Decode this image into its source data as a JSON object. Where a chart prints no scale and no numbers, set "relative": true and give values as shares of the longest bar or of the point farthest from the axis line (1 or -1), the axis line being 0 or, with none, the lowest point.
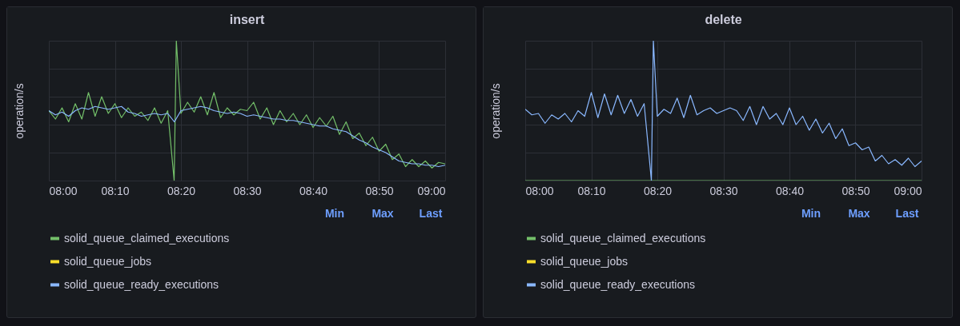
{
  "chart_data": [
    {
      "type": "line",
      "title": "insert",
      "ylabel": "operation/s",
      "relative": true,
      "grid": true,
      "legend": "bottom",
      "x": [
        8,
        8.0167,
        8.0333,
        8.05,
        8.0667,
        8.0833,
        8.1,
        8.1167,
        8.1333,
        8.15,
        8.1667,
        8.1833,
        8.2,
        8.2167,
        8.2333,
        8.25,
        8.2667,
        8.2833,
        8.3,
        8.3167,
        8.3333,
        8.35,
        8.3667,
        8.3833,
        8.4,
        8.4167,
        8.4333,
        8.45,
        8.4667,
        8.4833,
        8.5,
        8.5167,
        8.5333,
        8.55,
        8.5667,
        8.5833,
        8.6,
        8.6167,
        8.6333,
        8.65,
        8.6667,
        8.6833,
        8.7,
        8.7167,
        8.7333,
        8.75,
        8.7667,
        8.7833,
        8.8,
        8.8167,
        8.8333,
        8.85,
        8.8667,
        8.8833,
        8.9,
        8.9167,
        8.9333,
        8.95,
        8.9667,
        8.9833,
        9
      ],
      "xlim": [
        8,
        9
      ],
      "xticks": [
        {
          "value": 8,
          "label": "08:00"
        },
        {
          "value": 8.1667,
          "label": "08:10"
        },
        {
          "value": 8.3333,
          "label": "08:20"
        },
        {
          "value": 8.5,
          "label": "08:30"
        },
        {
          "value": 8.6667,
          "label": "08:40"
        },
        {
          "value": 8.8333,
          "label": "08:50"
        },
        {
          "value": 9,
          "label": "09:00"
        }
      ],
      "annotations": [
        "Min",
        "Max",
        "Last"
      ],
      "series": [
        {
          "name": "solid_queue_claimed_executions",
          "color": "#73bf69",
          "x": [
            8,
            8.0167,
            8.0333,
            8.05,
            8.0667,
            8.0833,
            8.1,
            8.1167,
            8.1333,
            8.15,
            8.1667,
            8.1833,
            8.2,
            8.2167,
            8.2333,
            8.25,
            8.2667,
            8.2833,
            8.3,
            8.3162,
            8.3217,
            8.3333,
            8.35,
            8.3667,
            8.3833,
            8.4,
            8.4167,
            8.4333,
            8.45,
            8.4667,
            8.4833,
            8.5,
            8.5167,
            8.5333,
            8.55,
            8.5667,
            8.5833,
            8.6,
            8.6167,
            8.6333,
            8.65,
            8.6667,
            8.6833,
            8.7,
            8.7167,
            8.7333,
            8.75,
            8.7667,
            8.7833,
            8.8,
            8.8167,
            8.8333,
            8.85,
            8.8667,
            8.8833,
            8.9,
            8.9167,
            8.9333,
            8.95,
            8.9667,
            8.9833,
            9
          ],
          "values": [
            0.5,
            0.44,
            0.52,
            0.42,
            0.55,
            0.44,
            0.63,
            0.46,
            0.6,
            0.48,
            0.55,
            0.45,
            0.52,
            0.46,
            0.49,
            0.43,
            0.52,
            0.41,
            0.5,
            0,
            1,
            0.48,
            0.56,
            0.49,
            0.6,
            0.47,
            0.63,
            0.45,
            0.52,
            0.47,
            0.51,
            0.5,
            0.56,
            0.44,
            0.52,
            0.4,
            0.5,
            0.42,
            0.48,
            0.4,
            0.47,
            0.38,
            0.45,
            0.39,
            0.46,
            0.33,
            0.42,
            0.3,
            0.34,
            0.25,
            0.31,
            0.21,
            0.26,
            0.15,
            0.19,
            0.1,
            0.15,
            0.1,
            0.14,
            0.09,
            0.13,
            0.12
          ]
        },
        {
          "name": "solid_queue_jobs",
          "color": "#fade2a",
          "values": [
            null,
            null,
            null,
            null,
            null,
            null,
            null,
            null,
            null,
            null,
            null,
            null,
            null,
            null,
            null,
            null,
            null,
            null,
            null,
            null,
            null,
            null,
            null,
            null,
            null,
            null,
            null,
            null,
            null,
            null,
            null,
            null,
            null,
            null,
            null,
            null,
            null,
            null,
            null,
            null,
            null,
            null,
            null,
            null,
            null,
            null,
            null,
            null,
            null,
            null,
            null,
            null,
            null,
            null,
            null,
            null,
            null,
            null,
            null,
            null,
            null
          ]
        },
        {
          "name": "solid_queue_ready_executions",
          "color": "#8ab8ff",
          "values": [
            0.5,
            0.47,
            0.49,
            0.46,
            0.5,
            0.52,
            0.51,
            0.53,
            0.52,
            0.51,
            0.52,
            0.53,
            0.49,
            0.48,
            0.46,
            0.47,
            0.48,
            0.47,
            0.48,
            0.42,
            0.5,
            0.51,
            0.52,
            0.53,
            0.52,
            0.5,
            0.49,
            0.48,
            0.49,
            0.48,
            0.46,
            0.47,
            0.46,
            0.45,
            0.44,
            0.44,
            0.43,
            0.43,
            0.42,
            0.41,
            0.4,
            0.39,
            0.39,
            0.37,
            0.36,
            0.35,
            0.32,
            0.29,
            0.27,
            0.24,
            0.22,
            0.2,
            0.17,
            0.14,
            0.13,
            0.12,
            0.12,
            0.11,
            0.11,
            0.1,
            0.11
          ]
        }
      ]
    },
    {
      "type": "line",
      "title": "delete",
      "ylabel": "operation/s",
      "relative": true,
      "grid": true,
      "legend": "bottom",
      "x": [
        8,
        8.0167,
        8.0333,
        8.05,
        8.0667,
        8.0833,
        8.1,
        8.1167,
        8.1333,
        8.15,
        8.1667,
        8.1833,
        8.2,
        8.2167,
        8.2333,
        8.25,
        8.2667,
        8.2833,
        8.3,
        8.3183,
        8.3233,
        8.3333,
        8.35,
        8.3667,
        8.3833,
        8.4,
        8.4167,
        8.4333,
        8.45,
        8.4667,
        8.4833,
        8.5,
        8.5167,
        8.5333,
        8.55,
        8.5667,
        8.5833,
        8.6,
        8.6167,
        8.6333,
        8.65,
        8.6667,
        8.6833,
        8.7,
        8.7167,
        8.7333,
        8.75,
        8.7667,
        8.7833,
        8.8,
        8.8167,
        8.8333,
        8.85,
        8.8667,
        8.8833,
        8.9,
        8.9167,
        8.9333,
        8.95,
        8.9667,
        8.9833,
        9
      ],
      "xlim": [
        8,
        9
      ],
      "xticks": [
        {
          "value": 8,
          "label": "08:00"
        },
        {
          "value": 8.1667,
          "label": "08:10"
        },
        {
          "value": 8.3333,
          "label": "08:20"
        },
        {
          "value": 8.5,
          "label": "08:30"
        },
        {
          "value": 8.6667,
          "label": "08:40"
        },
        {
          "value": 8.8333,
          "label": "08:50"
        },
        {
          "value": 9,
          "label": "09:00"
        }
      ],
      "annotations": [
        "Min",
        "Max",
        "Last"
      ],
      "series": [
        {
          "name": "solid_queue_claimed_executions",
          "color": "#73bf69",
          "values": [
            0,
            0,
            0,
            0,
            0,
            0,
            0,
            0,
            0,
            0,
            0,
            0,
            0,
            0,
            0,
            0,
            0,
            0,
            0,
            0,
            0,
            0,
            0,
            0,
            0,
            0,
            0,
            0,
            0,
            0,
            0,
            0,
            0,
            0,
            0,
            0,
            0,
            0,
            0,
            0,
            0,
            0,
            0,
            0,
            0,
            0,
            0,
            0,
            0,
            0,
            0,
            0,
            0,
            0,
            0,
            0,
            0,
            0,
            0,
            0,
            0,
            0
          ]
        },
        {
          "name": "solid_queue_jobs",
          "color": "#fade2a",
          "values": [
            null,
            null,
            null,
            null,
            null,
            null,
            null,
            null,
            null,
            null,
            null,
            null,
            null,
            null,
            null,
            null,
            null,
            null,
            null,
            null,
            null,
            null,
            null,
            null,
            null,
            null,
            null,
            null,
            null,
            null,
            null,
            null,
            null,
            null,
            null,
            null,
            null,
            null,
            null,
            null,
            null,
            null,
            null,
            null,
            null,
            null,
            null,
            null,
            null,
            null,
            null,
            null,
            null,
            null,
            null,
            null,
            null,
            null,
            null,
            null,
            null,
            null
          ]
        },
        {
          "name": "solid_queue_ready_executions",
          "color": "#8ab8ff",
          "values": [
            0.51,
            0.47,
            0.48,
            0.41,
            0.47,
            0.44,
            0.48,
            0.42,
            0.5,
            0.46,
            0.63,
            0.45,
            0.62,
            0.47,
            0.61,
            0.48,
            0.58,
            0.46,
            0.55,
            0,
            1,
            0.46,
            0.51,
            0.48,
            0.59,
            0.45,
            0.61,
            0.47,
            0.5,
            0.52,
            0.48,
            0.5,
            0.52,
            0.5,
            0.43,
            0.53,
            0.4,
            0.53,
            0.44,
            0.48,
            0.4,
            0.52,
            0.4,
            0.46,
            0.36,
            0.44,
            0.34,
            0.41,
            0.3,
            0.37,
            0.25,
            0.27,
            0.22,
            0.24,
            0.14,
            0.18,
            0.12,
            0.15,
            0.11,
            0.16,
            0.1,
            0.14
          ]
        }
      ]
    }
  ]
}
